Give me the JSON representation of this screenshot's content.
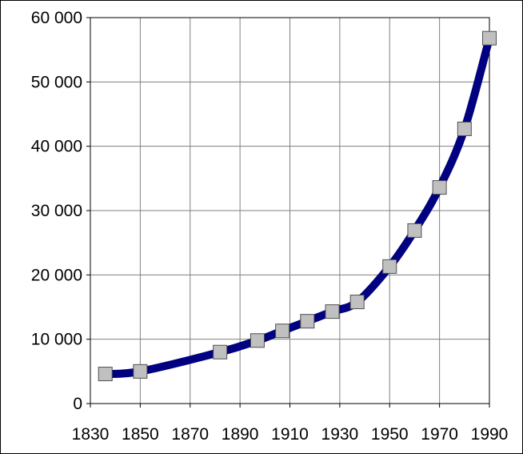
{
  "chart_data": {
    "type": "line",
    "title": "",
    "xlabel": "",
    "ylabel": "",
    "xlim": [
      1830,
      1990
    ],
    "ylim": [
      0,
      60000
    ],
    "x_ticks": [
      {
        "value": 1830,
        "label": "1830"
      },
      {
        "value": 1850,
        "label": "1850"
      },
      {
        "value": 1870,
        "label": "1870"
      },
      {
        "value": 1890,
        "label": "1890"
      },
      {
        "value": 1910,
        "label": "1910"
      },
      {
        "value": 1930,
        "label": "1930"
      },
      {
        "value": 1950,
        "label": "1950"
      },
      {
        "value": 1970,
        "label": "1970"
      },
      {
        "value": 1990,
        "label": "1990"
      }
    ],
    "x_gridlines": [
      1830,
      1850,
      1870,
      1890,
      1910,
      1930,
      1950,
      1970,
      1990
    ],
    "y_ticks": [
      {
        "value": 0,
        "label": "0"
      },
      {
        "value": 10000,
        "label": "10 000"
      },
      {
        "value": 20000,
        "label": "20 000"
      },
      {
        "value": 30000,
        "label": "30 000"
      },
      {
        "value": 40000,
        "label": "40 000"
      },
      {
        "value": 50000,
        "label": "50 000"
      },
      {
        "value": 60000,
        "label": "60 000"
      }
    ],
    "grid": true,
    "legend": "none",
    "series": [
      {
        "x": [
          1836,
          1850,
          1882,
          1897,
          1907,
          1917,
          1927,
          1937,
          1950,
          1960,
          1970,
          1980,
          1990
        ],
        "values": [
          4600,
          5000,
          8000,
          9800,
          11300,
          12800,
          14300,
          15800,
          21300,
          26900,
          33600,
          42700,
          56800
        ],
        "line_color": "#000080",
        "marker": "square",
        "marker_color": "#c0c0c0"
      }
    ]
  }
}
